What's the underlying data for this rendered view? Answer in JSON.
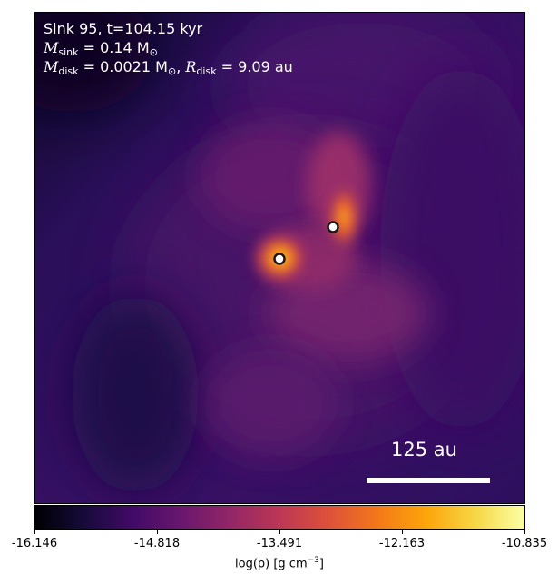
{
  "annotation": {
    "line1": "Sink 95, t=104.15 kyr",
    "sink_mass_symbol": "M",
    "sink_mass_sub": "sink",
    "sink_mass_value": " = 0.14 M",
    "sink_mass_unit_sub": "⊙",
    "disk_mass_symbol": "M",
    "disk_mass_sub": "disk",
    "disk_mass_value": " = 0.0021 M",
    "disk_mass_unit_sub": "⊙",
    "disk_radius_sep": ", ",
    "disk_radius_symbol": "R",
    "disk_radius_sub": "disk",
    "disk_radius_value": " = 9.09 au"
  },
  "scalebar": {
    "label": "125 au"
  },
  "colorbar": {
    "ticks": [
      "-16.146",
      "-14.818",
      "-13.491",
      "-12.163",
      "-10.835"
    ],
    "label_main": "log(ρ) [g cm",
    "label_exp": "−3",
    "label_end": "]",
    "colormap": "inferno"
  },
  "colors": {
    "background_dark": "#1a0b3c",
    "mid_purple": "#4b1670",
    "filament": "#8a2d6a",
    "core_orange": "#f3761b",
    "hot_yellow": "#fcffa4"
  },
  "sinks": [
    {
      "name": "sink-a"
    },
    {
      "name": "sink-b"
    }
  ]
}
